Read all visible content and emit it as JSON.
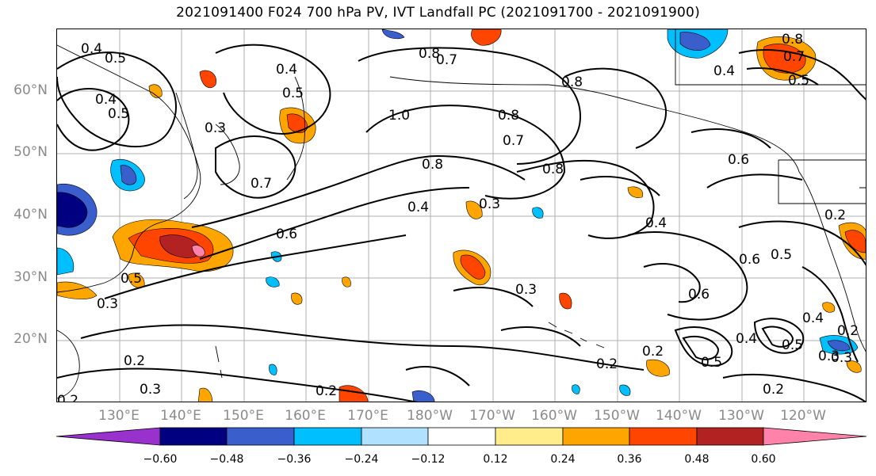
{
  "title": "2021091400 F024 700 hPa PV, IVT Landfall PC (2021091700 - 2021091900)",
  "lat_labels": [
    "60°N",
    "50°N",
    "40°N",
    "30°N",
    "20°N"
  ],
  "lon_labels": [
    "130°E",
    "140°E",
    "150°E",
    "160°E",
    "170°E",
    "180°W",
    "170°W",
    "160°W",
    "150°W",
    "140°W",
    "130°W",
    "120°W"
  ],
  "contour_labels": [
    "0.4",
    "0.5",
    "0.4",
    "0.5",
    "0.3",
    "0.4",
    "0.5",
    "0.8",
    "0.7",
    "1.0",
    "0.8",
    "0.7",
    "0.8",
    "0.8",
    "0.8",
    "0.7",
    "0.4",
    "0.6",
    "0.3",
    "0.4",
    "0.6",
    "0.5",
    "0.6",
    "0.3",
    "0.6",
    "0.2",
    "0.4",
    "0.5",
    "0.4",
    "0.5",
    "0.2",
    "0.3",
    "0.2",
    "0.2",
    "0.2",
    "0.3",
    "0.2",
    "0.3",
    "0.2",
    "0.8",
    "0.7",
    "0.4",
    "0.5",
    "0.5",
    "0.2",
    "0.3"
  ],
  "colorbar": {
    "ticks": [
      "−0.60",
      "−0.48",
      "−0.36",
      "−0.24",
      "−0.12",
      "0.12",
      "0.24",
      "0.36",
      "0.48",
      "0.60"
    ],
    "colors": [
      "#9932cc",
      "#000080",
      "#3a5fcd",
      "#00bfff",
      "#b0e2ff",
      "#ffffff",
      "#ffec8b",
      "#ffa500",
      "#ff4500",
      "#b22222",
      "#ff82ab"
    ]
  },
  "colors": {
    "negative_strong": "#3a5fcd",
    "negative_mid": "#00bfff",
    "negative_weak": "#b0e2ff",
    "positive_weak": "#ffec8b",
    "positive_mid": "#ffa500",
    "positive_strong": "#ff4500",
    "positive_max": "#b22222",
    "positive_extreme": "#ff82ab"
  }
}
